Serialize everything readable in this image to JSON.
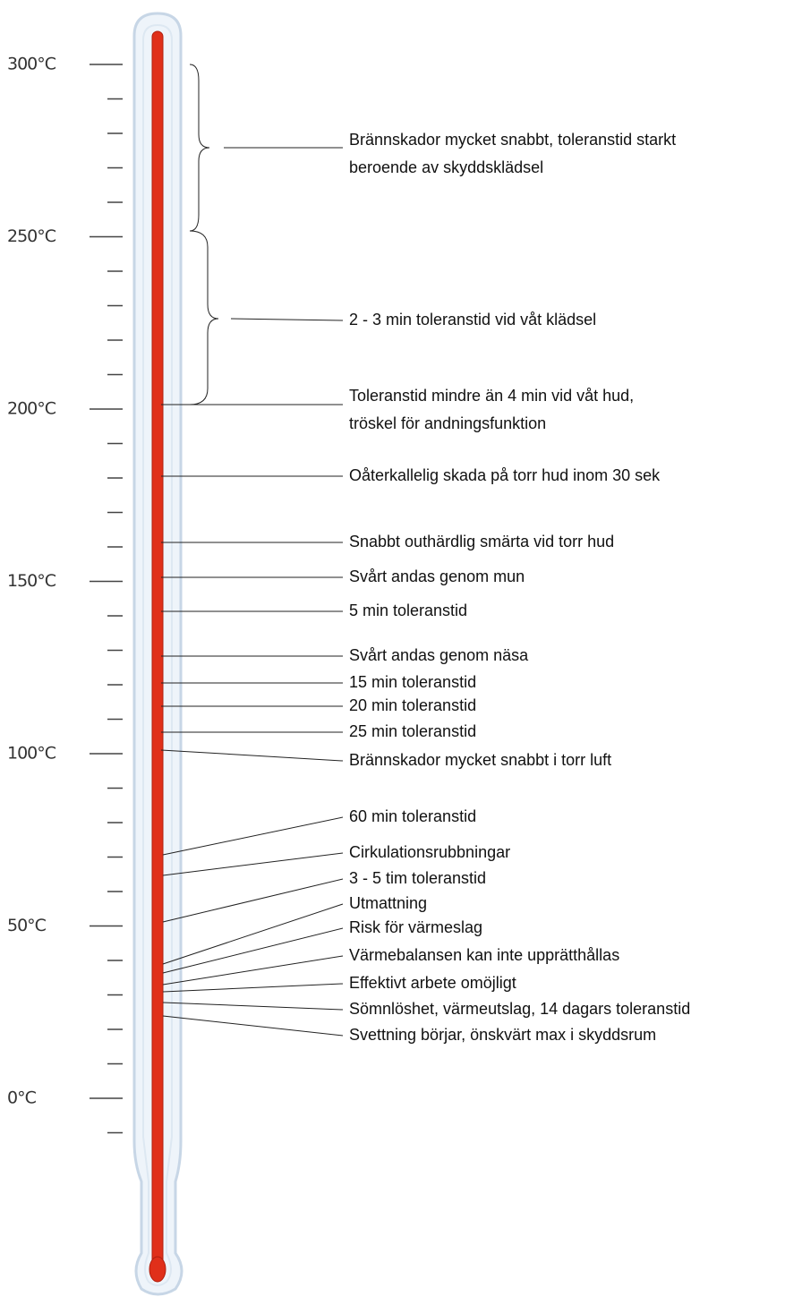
{
  "scale": [
    "300°C",
    "250°C",
    "200°C",
    "150°C",
    "100°C",
    "50°C",
    "0°C"
  ],
  "annotations": [
    {
      "lines": [
        "Brännskador mycket snabbt, toleranstid starkt",
        "beroende av skyddsklädsel"
      ]
    },
    {
      "lines": [
        "2 - 3 min toleranstid vid våt klädsel"
      ]
    },
    {
      "lines": [
        "Toleranstid mindre än 4 min vid våt hud,",
        "tröskel för andningsfunktion"
      ]
    },
    {
      "lines": [
        "Oåterkallelig skada på torr hud inom 30 sek"
      ]
    },
    {
      "lines": [
        "Snabbt outhärdlig smärta vid torr hud"
      ]
    },
    {
      "lines": [
        "Svårt andas genom mun"
      ]
    },
    {
      "lines": [
        "5 min toleranstid"
      ]
    },
    {
      "lines": [
        "Svårt andas genom näsa"
      ]
    },
    {
      "lines": [
        "15 min toleranstid"
      ]
    },
    {
      "lines": [
        "20 min toleranstid"
      ]
    },
    {
      "lines": [
        "25 min toleranstid"
      ]
    },
    {
      "lines": [
        "Brännskador mycket snabbt i torr luft"
      ]
    },
    {
      "lines": [
        "60 min toleranstid"
      ]
    },
    {
      "lines": [
        "Cirkulationsrubbningar"
      ]
    },
    {
      "lines": [
        "3 - 5 tim toleranstid"
      ]
    },
    {
      "lines": [
        "Utmattning"
      ]
    },
    {
      "lines": [
        "Risk för värmeslag"
      ]
    },
    {
      "lines": [
        "Värmebalansen kan inte upprätthållas"
      ]
    },
    {
      "lines": [
        "Effektivt arbete omöjligt"
      ]
    },
    {
      "lines": [
        "Sömnlöshet, värmeutslag, 14 dagars toleranstid"
      ]
    },
    {
      "lines": [
        "Svettning börjar, önskvärt max i skyddsrum"
      ]
    }
  ]
}
